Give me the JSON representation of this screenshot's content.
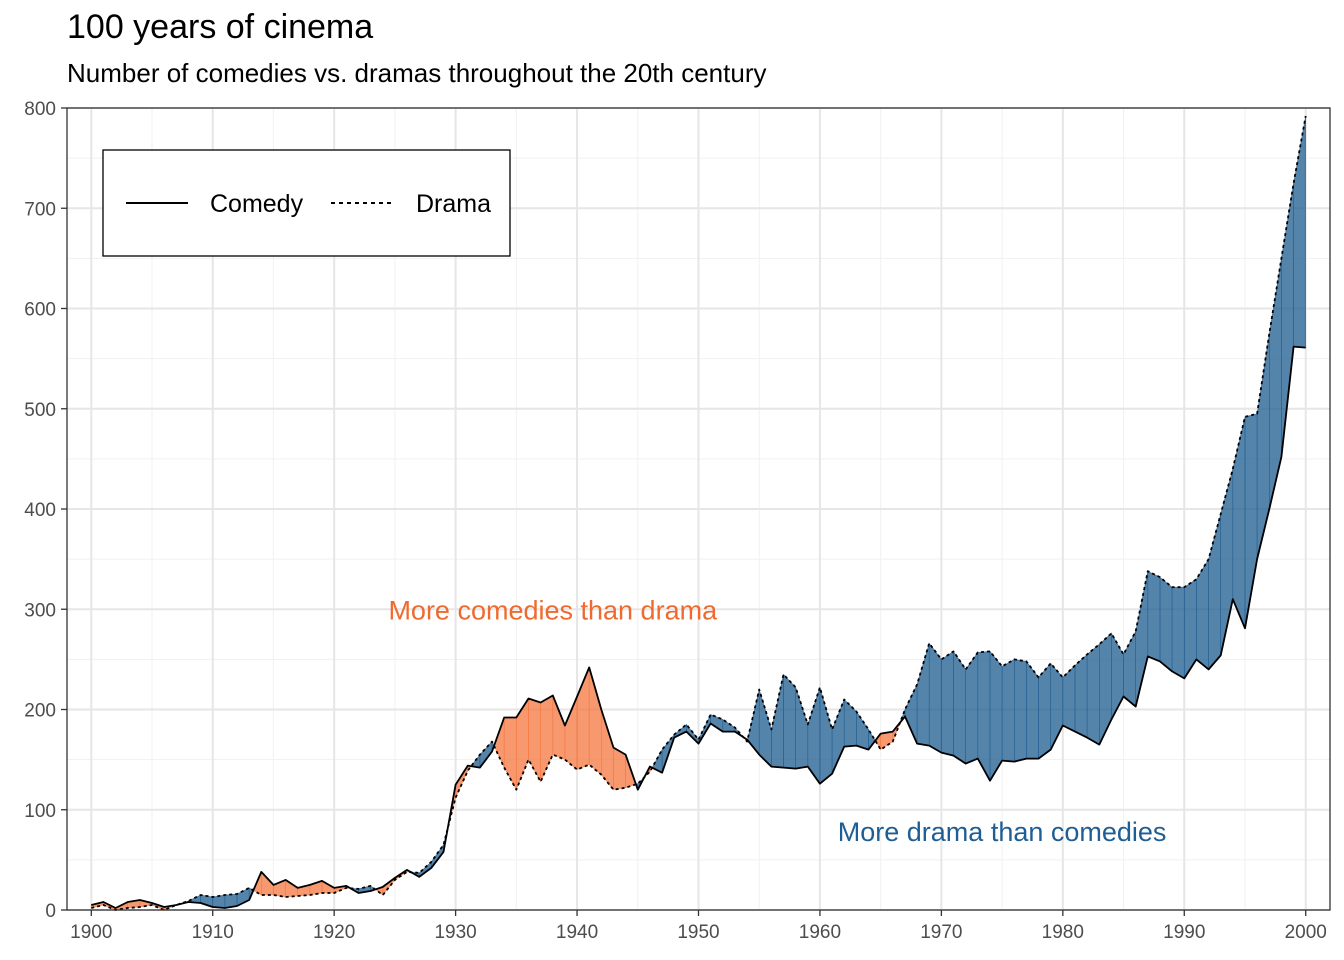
{
  "chart_data": {
    "type": "area",
    "title": "100 years of cinema",
    "subtitle": "Number of comedies vs. dramas throughout the 20th century",
    "xlabel": "",
    "ylabel": "",
    "xlim": [
      1898,
      2002
    ],
    "ylim": [
      0,
      800
    ],
    "x_ticks": [
      1900,
      1910,
      1920,
      1930,
      1940,
      1950,
      1960,
      1970,
      1980,
      1990,
      2000
    ],
    "y_ticks": [
      0,
      100,
      200,
      300,
      400,
      500,
      600,
      700,
      800
    ],
    "grid": true,
    "legend_position": "top-left",
    "colors": {
      "more_comedy": "#f4763e",
      "more_drama": "#1c5b8f",
      "annotation_comedy": "#ef6a2e",
      "annotation_drama": "#1f5e94"
    },
    "series": [
      {
        "name": "Comedy",
        "linestyle": "solid",
        "values": [
          [
            1900,
            5
          ],
          [
            1901,
            8
          ],
          [
            1902,
            2
          ],
          [
            1903,
            8
          ],
          [
            1904,
            10
          ],
          [
            1905,
            7
          ],
          [
            1906,
            3
          ],
          [
            1907,
            5
          ],
          [
            1908,
            8
          ],
          [
            1909,
            7
          ],
          [
            1910,
            3
          ],
          [
            1911,
            2
          ],
          [
            1912,
            4
          ],
          [
            1913,
            10
          ],
          [
            1914,
            38
          ],
          [
            1915,
            25
          ],
          [
            1916,
            30
          ],
          [
            1917,
            22
          ],
          [
            1918,
            25
          ],
          [
            1919,
            29
          ],
          [
            1920,
            22
          ],
          [
            1921,
            24
          ],
          [
            1922,
            17
          ],
          [
            1923,
            19
          ],
          [
            1924,
            23
          ],
          [
            1925,
            32
          ],
          [
            1926,
            40
          ],
          [
            1927,
            33
          ],
          [
            1928,
            42
          ],
          [
            1929,
            58
          ],
          [
            1930,
            125
          ],
          [
            1931,
            144
          ],
          [
            1932,
            142
          ],
          [
            1933,
            158
          ],
          [
            1934,
            192
          ],
          [
            1935,
            192
          ],
          [
            1936,
            211
          ],
          [
            1937,
            207
          ],
          [
            1938,
            214
          ],
          [
            1939,
            184
          ],
          [
            1940,
            213
          ],
          [
            1941,
            242
          ],
          [
            1942,
            200
          ],
          [
            1943,
            162
          ],
          [
            1944,
            155
          ],
          [
            1945,
            120
          ],
          [
            1946,
            143
          ],
          [
            1947,
            137
          ],
          [
            1948,
            172
          ],
          [
            1949,
            178
          ],
          [
            1950,
            166
          ],
          [
            1951,
            186
          ],
          [
            1952,
            178
          ],
          [
            1953,
            178
          ],
          [
            1954,
            170
          ],
          [
            1955,
            155
          ],
          [
            1956,
            143
          ],
          [
            1957,
            142
          ],
          [
            1958,
            141
          ],
          [
            1959,
            143
          ],
          [
            1960,
            126
          ],
          [
            1961,
            136
          ],
          [
            1962,
            163
          ],
          [
            1963,
            164
          ],
          [
            1964,
            160
          ],
          [
            1965,
            176
          ],
          [
            1966,
            178
          ],
          [
            1967,
            193
          ],
          [
            1968,
            166
          ],
          [
            1969,
            164
          ],
          [
            1970,
            157
          ],
          [
            1971,
            154
          ],
          [
            1972,
            146
          ],
          [
            1973,
            151
          ],
          [
            1974,
            129
          ],
          [
            1975,
            149
          ],
          [
            1976,
            148
          ],
          [
            1977,
            151
          ],
          [
            1978,
            151
          ],
          [
            1979,
            160
          ],
          [
            1980,
            184
          ],
          [
            1981,
            178
          ],
          [
            1982,
            172
          ],
          [
            1983,
            165
          ],
          [
            1984,
            190
          ],
          [
            1985,
            213
          ],
          [
            1986,
            203
          ],
          [
            1987,
            253
          ],
          [
            1988,
            248
          ],
          [
            1989,
            238
          ],
          [
            1990,
            231
          ],
          [
            1991,
            250
          ],
          [
            1992,
            240
          ],
          [
            1993,
            254
          ],
          [
            1994,
            310
          ],
          [
            1995,
            281
          ],
          [
            1996,
            350
          ],
          [
            1997,
            400
          ],
          [
            1998,
            452
          ],
          [
            1999,
            562
          ],
          [
            2000,
            561
          ]
        ]
      },
      {
        "name": "Drama",
        "linestyle": "dotted",
        "values": [
          [
            1900,
            2
          ],
          [
            1901,
            5
          ],
          [
            1902,
            0
          ],
          [
            1903,
            2
          ],
          [
            1904,
            3
          ],
          [
            1905,
            5
          ],
          [
            1906,
            0
          ],
          [
            1907,
            5
          ],
          [
            1908,
            9
          ],
          [
            1909,
            15
          ],
          [
            1910,
            13
          ],
          [
            1911,
            15
          ],
          [
            1912,
            16
          ],
          [
            1913,
            22
          ],
          [
            1914,
            15
          ],
          [
            1915,
            15
          ],
          [
            1916,
            13
          ],
          [
            1917,
            14
          ],
          [
            1918,
            15
          ],
          [
            1919,
            17
          ],
          [
            1920,
            17
          ],
          [
            1921,
            22
          ],
          [
            1922,
            21
          ],
          [
            1923,
            24
          ],
          [
            1924,
            15
          ],
          [
            1925,
            30
          ],
          [
            1926,
            38
          ],
          [
            1927,
            37
          ],
          [
            1928,
            48
          ],
          [
            1929,
            65
          ],
          [
            1930,
            112
          ],
          [
            1931,
            139
          ],
          [
            1932,
            155
          ],
          [
            1933,
            168
          ],
          [
            1934,
            142
          ],
          [
            1935,
            120
          ],
          [
            1936,
            150
          ],
          [
            1937,
            128
          ],
          [
            1938,
            155
          ],
          [
            1939,
            150
          ],
          [
            1940,
            140
          ],
          [
            1941,
            145
          ],
          [
            1942,
            135
          ],
          [
            1943,
            120
          ],
          [
            1944,
            122
          ],
          [
            1945,
            126
          ],
          [
            1946,
            138
          ],
          [
            1947,
            160
          ],
          [
            1948,
            175
          ],
          [
            1949,
            185
          ],
          [
            1950,
            170
          ],
          [
            1951,
            195
          ],
          [
            1952,
            190
          ],
          [
            1953,
            182
          ],
          [
            1954,
            168
          ],
          [
            1955,
            220
          ],
          [
            1956,
            180
          ],
          [
            1957,
            235
          ],
          [
            1958,
            222
          ],
          [
            1959,
            185
          ],
          [
            1960,
            222
          ],
          [
            1961,
            180
          ],
          [
            1962,
            210
          ],
          [
            1963,
            198
          ],
          [
            1964,
            180
          ],
          [
            1965,
            160
          ],
          [
            1966,
            168
          ],
          [
            1967,
            200
          ],
          [
            1968,
            225
          ],
          [
            1969,
            266
          ],
          [
            1970,
            250
          ],
          [
            1971,
            258
          ],
          [
            1972,
            240
          ],
          [
            1973,
            257
          ],
          [
            1974,
            258
          ],
          [
            1975,
            243
          ],
          [
            1976,
            250
          ],
          [
            1977,
            248
          ],
          [
            1978,
            232
          ],
          [
            1979,
            246
          ],
          [
            1980,
            232
          ],
          [
            1981,
            244
          ],
          [
            1982,
            255
          ],
          [
            1983,
            265
          ],
          [
            1984,
            276
          ],
          [
            1985,
            255
          ],
          [
            1986,
            278
          ],
          [
            1987,
            338
          ],
          [
            1988,
            332
          ],
          [
            1989,
            322
          ],
          [
            1990,
            322
          ],
          [
            1991,
            330
          ],
          [
            1992,
            350
          ],
          [
            1993,
            395
          ],
          [
            1994,
            440
          ],
          [
            1995,
            492
          ],
          [
            1996,
            495
          ],
          [
            1997,
            575
          ],
          [
            1998,
            650
          ],
          [
            1999,
            725
          ],
          [
            2000,
            792
          ]
        ]
      }
    ],
    "annotations": [
      {
        "text": "More comedies than drama",
        "x": 1938,
        "y": 300,
        "color": "#ef6a2e"
      },
      {
        "text": "More drama than comedies",
        "x": 1975,
        "y": 79,
        "color": "#1f5e94"
      }
    ]
  }
}
